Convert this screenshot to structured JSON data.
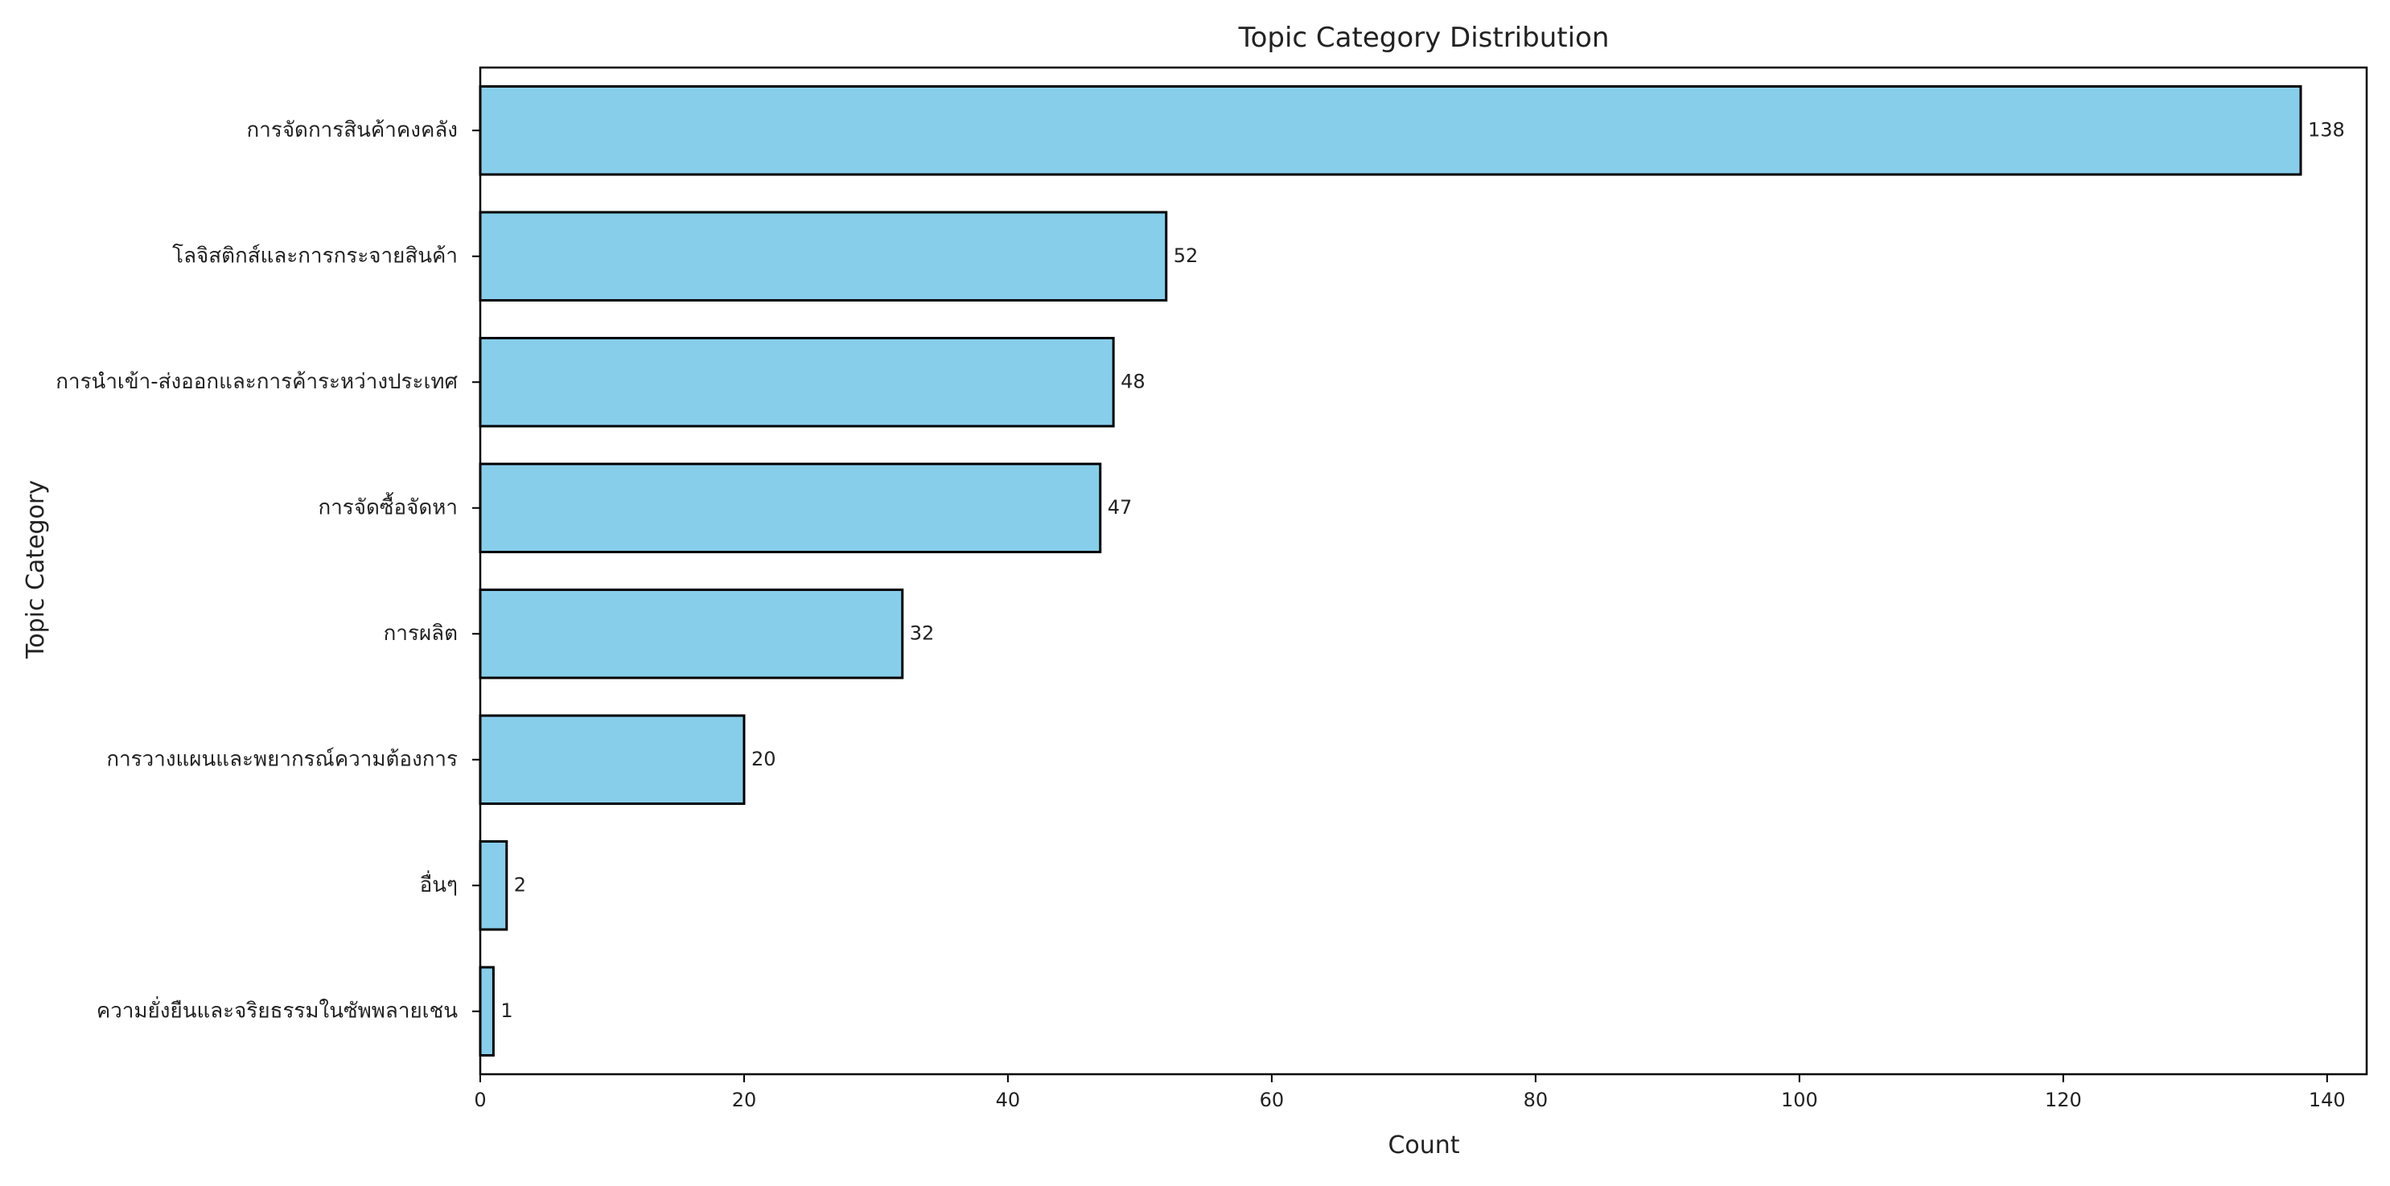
{
  "chart_data": {
    "type": "bar",
    "orientation": "horizontal",
    "title": "Topic Category Distribution",
    "xlabel": "Count",
    "ylabel": "Topic Category",
    "categories": [
      "การจัดการสินค้าคงคลัง",
      "โลจิสติกส์และการกระจายสินค้า",
      "การนำเข้า-ส่งออกและการค้าระหว่างประเทศ",
      "การจัดซื้อจัดหา",
      "การผลิต",
      "การวางแผนและพยากรณ์ความต้องการ",
      "อื่นๆ",
      "ความยั่งยืนและจริยธรรมในซัพพลายเชน"
    ],
    "values": [
      138,
      52,
      48,
      47,
      32,
      20,
      2,
      1
    ],
    "data_labels": [
      "138",
      "52",
      "48",
      "47",
      "32",
      "20",
      "2",
      "1"
    ],
    "xlim": [
      0,
      143
    ],
    "xticks": [
      0,
      20,
      40,
      60,
      80,
      100,
      120,
      140
    ],
    "xtick_labels": [
      "0",
      "20",
      "40",
      "60",
      "80",
      "100",
      "120",
      "140"
    ],
    "grid": false,
    "legend": "none",
    "colors": {
      "bar_fill": "#87CEEB",
      "bar_edge": "#000000",
      "axis": "#000000"
    }
  }
}
